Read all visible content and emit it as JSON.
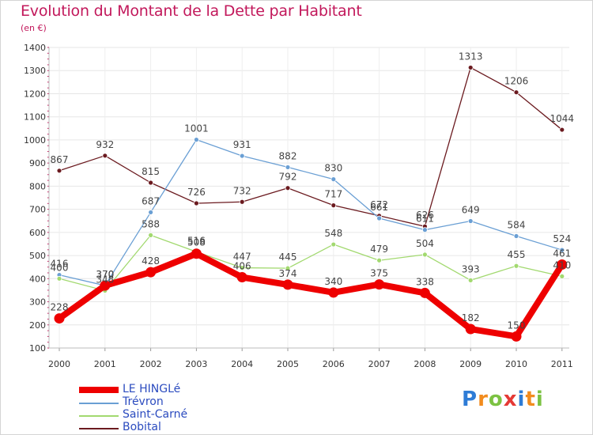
{
  "header": {
    "title": "Evolution du Montant de la Dette par Habitant",
    "subtitle": "(en €)"
  },
  "logo": {
    "letters": [
      "P",
      "r",
      "o",
      "x",
      "i",
      "t",
      "i"
    ],
    "colors": [
      "#2e7cd6",
      "#f28c1e",
      "#7cc242",
      "#e53935",
      "#2e7cd6",
      "#f28c1e",
      "#7cc242"
    ]
  },
  "chart_data": {
    "type": "line",
    "title": "Evolution du Montant de la Dette par Habitant",
    "subtitle": "(en €)",
    "xlabel": "",
    "ylabel": "",
    "x": [
      "2000",
      "2001",
      "2002",
      "2003",
      "2004",
      "2005",
      "2006",
      "2007",
      "2008",
      "2009",
      "2010",
      "2011"
    ],
    "ylim": [
      100,
      1400
    ],
    "yticks": [
      100,
      200,
      300,
      400,
      500,
      600,
      700,
      800,
      900,
      1000,
      1100,
      1200,
      1300,
      1400
    ],
    "grid": true,
    "legend_position": "bottom-left",
    "series": [
      {
        "name": "Bobital",
        "color": "#6b1a1f",
        "values": [
          867,
          932,
          815,
          726,
          732,
          792,
          717,
          672,
          626,
          1313,
          1206,
          1044
        ]
      },
      {
        "name": "Trévron",
        "color": "#6a9fd4",
        "values": [
          416,
          370,
          687,
          1001,
          931,
          882,
          830,
          661,
          611,
          649,
          584,
          524
        ]
      },
      {
        "name": "Saint-Carné",
        "color": "#a2d96f",
        "values": [
          400,
          348,
          588,
          516,
          447,
          445,
          548,
          479,
          504,
          393,
          455,
          410
        ]
      },
      {
        "name": "LE HINGLé",
        "color": "#ee0000",
        "values": [
          228,
          370,
          428,
          508,
          406,
          374,
          340,
          375,
          338,
          182,
          150,
          461
        ]
      }
    ]
  }
}
